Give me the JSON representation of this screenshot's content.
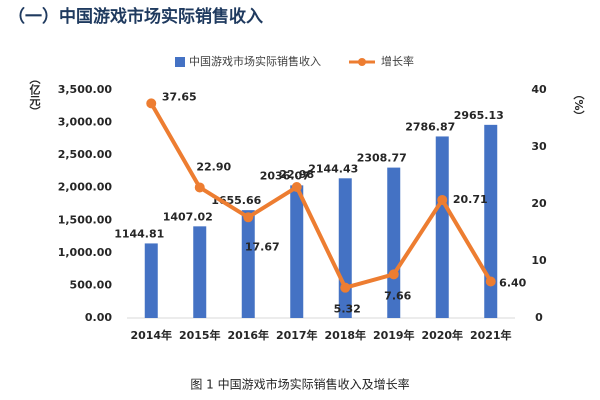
{
  "header": {
    "title": "（一）中国游戏市场实际销售收入"
  },
  "chart_data": {
    "type": "bar-line",
    "y_label": "（亿元）",
    "y2_label": "（%）",
    "categories": [
      "2014年",
      "2015年",
      "2016年",
      "2017年",
      "2018年",
      "2019年",
      "2020年",
      "2021年"
    ],
    "series": [
      {
        "name": "中国游戏市场实际销售收入",
        "type": "bar",
        "color": "#4472c4",
        "values": [
          1144.81,
          1407.02,
          1655.66,
          2036.07,
          2144.43,
          2308.77,
          2786.87,
          2965.13
        ]
      },
      {
        "name": "增长率",
        "type": "line",
        "axis": "y2",
        "color": "#ed7d31",
        "values": [
          37.65,
          22.9,
          17.67,
          22.98,
          5.32,
          7.66,
          20.71,
          6.4
        ],
        "value_labels": [
          "37.65",
          "22.90",
          "17.67",
          "22.98",
          "5.32",
          "7.66",
          "20.71",
          "6.40"
        ]
      }
    ],
    "ylim": [
      0,
      3500
    ],
    "yticks": [
      {
        "value": 0,
        "label": "0.00"
      },
      {
        "value": 500,
        "label": "500.00"
      },
      {
        "value": 1000,
        "label": "1,000.00"
      },
      {
        "value": 1500,
        "label": "1,500.00"
      },
      {
        "value": 2000,
        "label": "2,000.00"
      },
      {
        "value": 2500,
        "label": "2,500.00"
      },
      {
        "value": 3000,
        "label": "3,000.00"
      },
      {
        "value": 3500,
        "label": "3,500.00"
      }
    ],
    "y2lim": [
      0,
      40
    ],
    "y2ticks": [
      0,
      10,
      20,
      30,
      40
    ]
  },
  "caption": "图 1 中国游戏市场实际销售收入及增长率"
}
